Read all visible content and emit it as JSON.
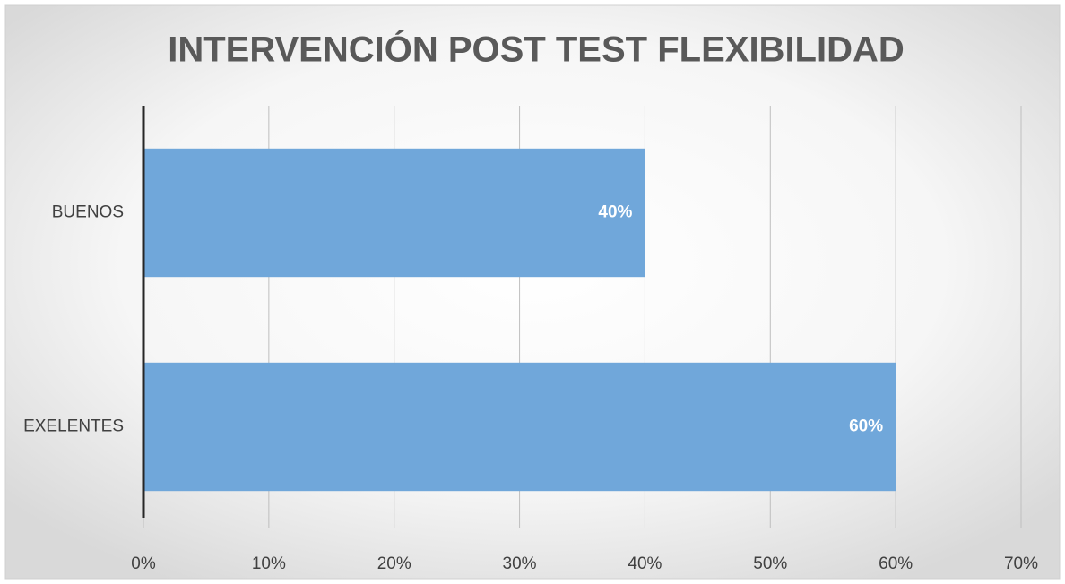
{
  "chart_data": {
    "type": "hbar",
    "title": "INTERVENCIÓN POST TEST FLEXIBILIDAD",
    "categories": [
      "BUENOS",
      "EXELENTES"
    ],
    "values": [
      40,
      60
    ],
    "value_labels": [
      "40%",
      "60%"
    ],
    "color": "#70a7da",
    "xlim": [
      0,
      70
    ],
    "xticks": [
      {
        "value": 0,
        "label": "0%"
      },
      {
        "value": 10,
        "label": "10%"
      },
      {
        "value": 20,
        "label": "20%"
      },
      {
        "value": 30,
        "label": "30%"
      },
      {
        "value": 40,
        "label": "40%"
      },
      {
        "value": 50,
        "label": "50%"
      },
      {
        "value": 60,
        "label": "60%"
      },
      {
        "value": 70,
        "label": "70%"
      }
    ],
    "grid": true
  }
}
